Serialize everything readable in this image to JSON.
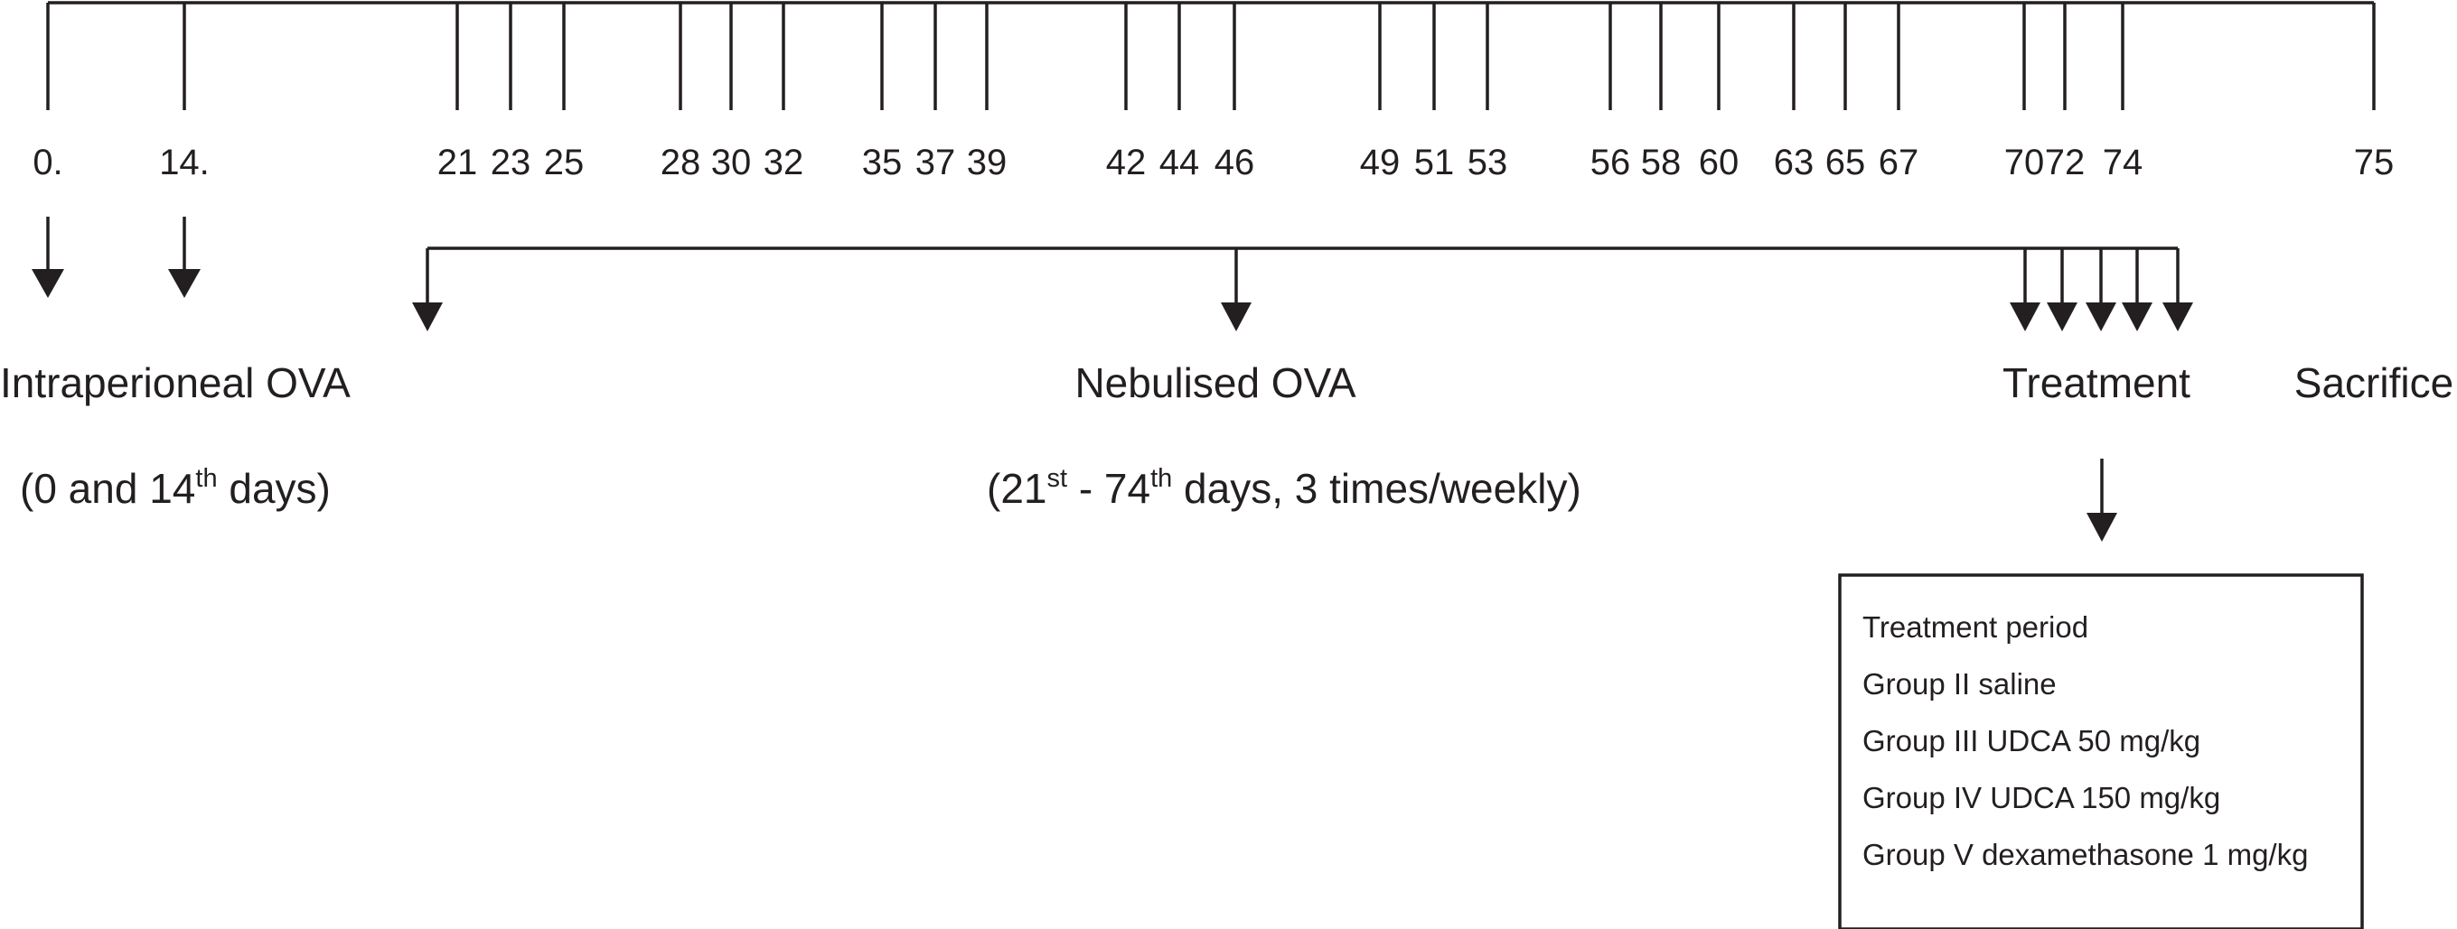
{
  "timeline": {
    "days": [
      "0.",
      "14.",
      "21",
      "23",
      "25",
      "28",
      "30",
      "32",
      "35",
      "37",
      "39",
      "42",
      "44",
      "46",
      "49",
      "51",
      "53",
      "56",
      "58",
      "60",
      "63",
      "65",
      "67",
      "70",
      "72",
      "74",
      "75"
    ]
  },
  "phases": {
    "intraperitoneal": {
      "label": "Intraperioneal OVA",
      "detail_pre": "(0 and 14",
      "detail_sup": "th",
      "detail_post": " days)"
    },
    "nebulised": {
      "label": "Nebulised OVA",
      "detail_pre": "(21",
      "detail_sup1": "st",
      "detail_mid": " - 74",
      "detail_sup2": "th",
      "detail_post": " days, 3 times/weekly)"
    },
    "treatment": {
      "label": "Treatment"
    },
    "sacrifice": {
      "label": "Sacrifice"
    }
  },
  "treatment_box": {
    "lines": [
      "Treatment period",
      "Group II saline",
      "Group III UDCA 50 mg/kg",
      "Group IV UDCA 150 mg/kg",
      "Group V dexamethasone 1 mg/kg"
    ]
  },
  "colors": {
    "ink": "#231f20",
    "background": "#ffffff"
  }
}
